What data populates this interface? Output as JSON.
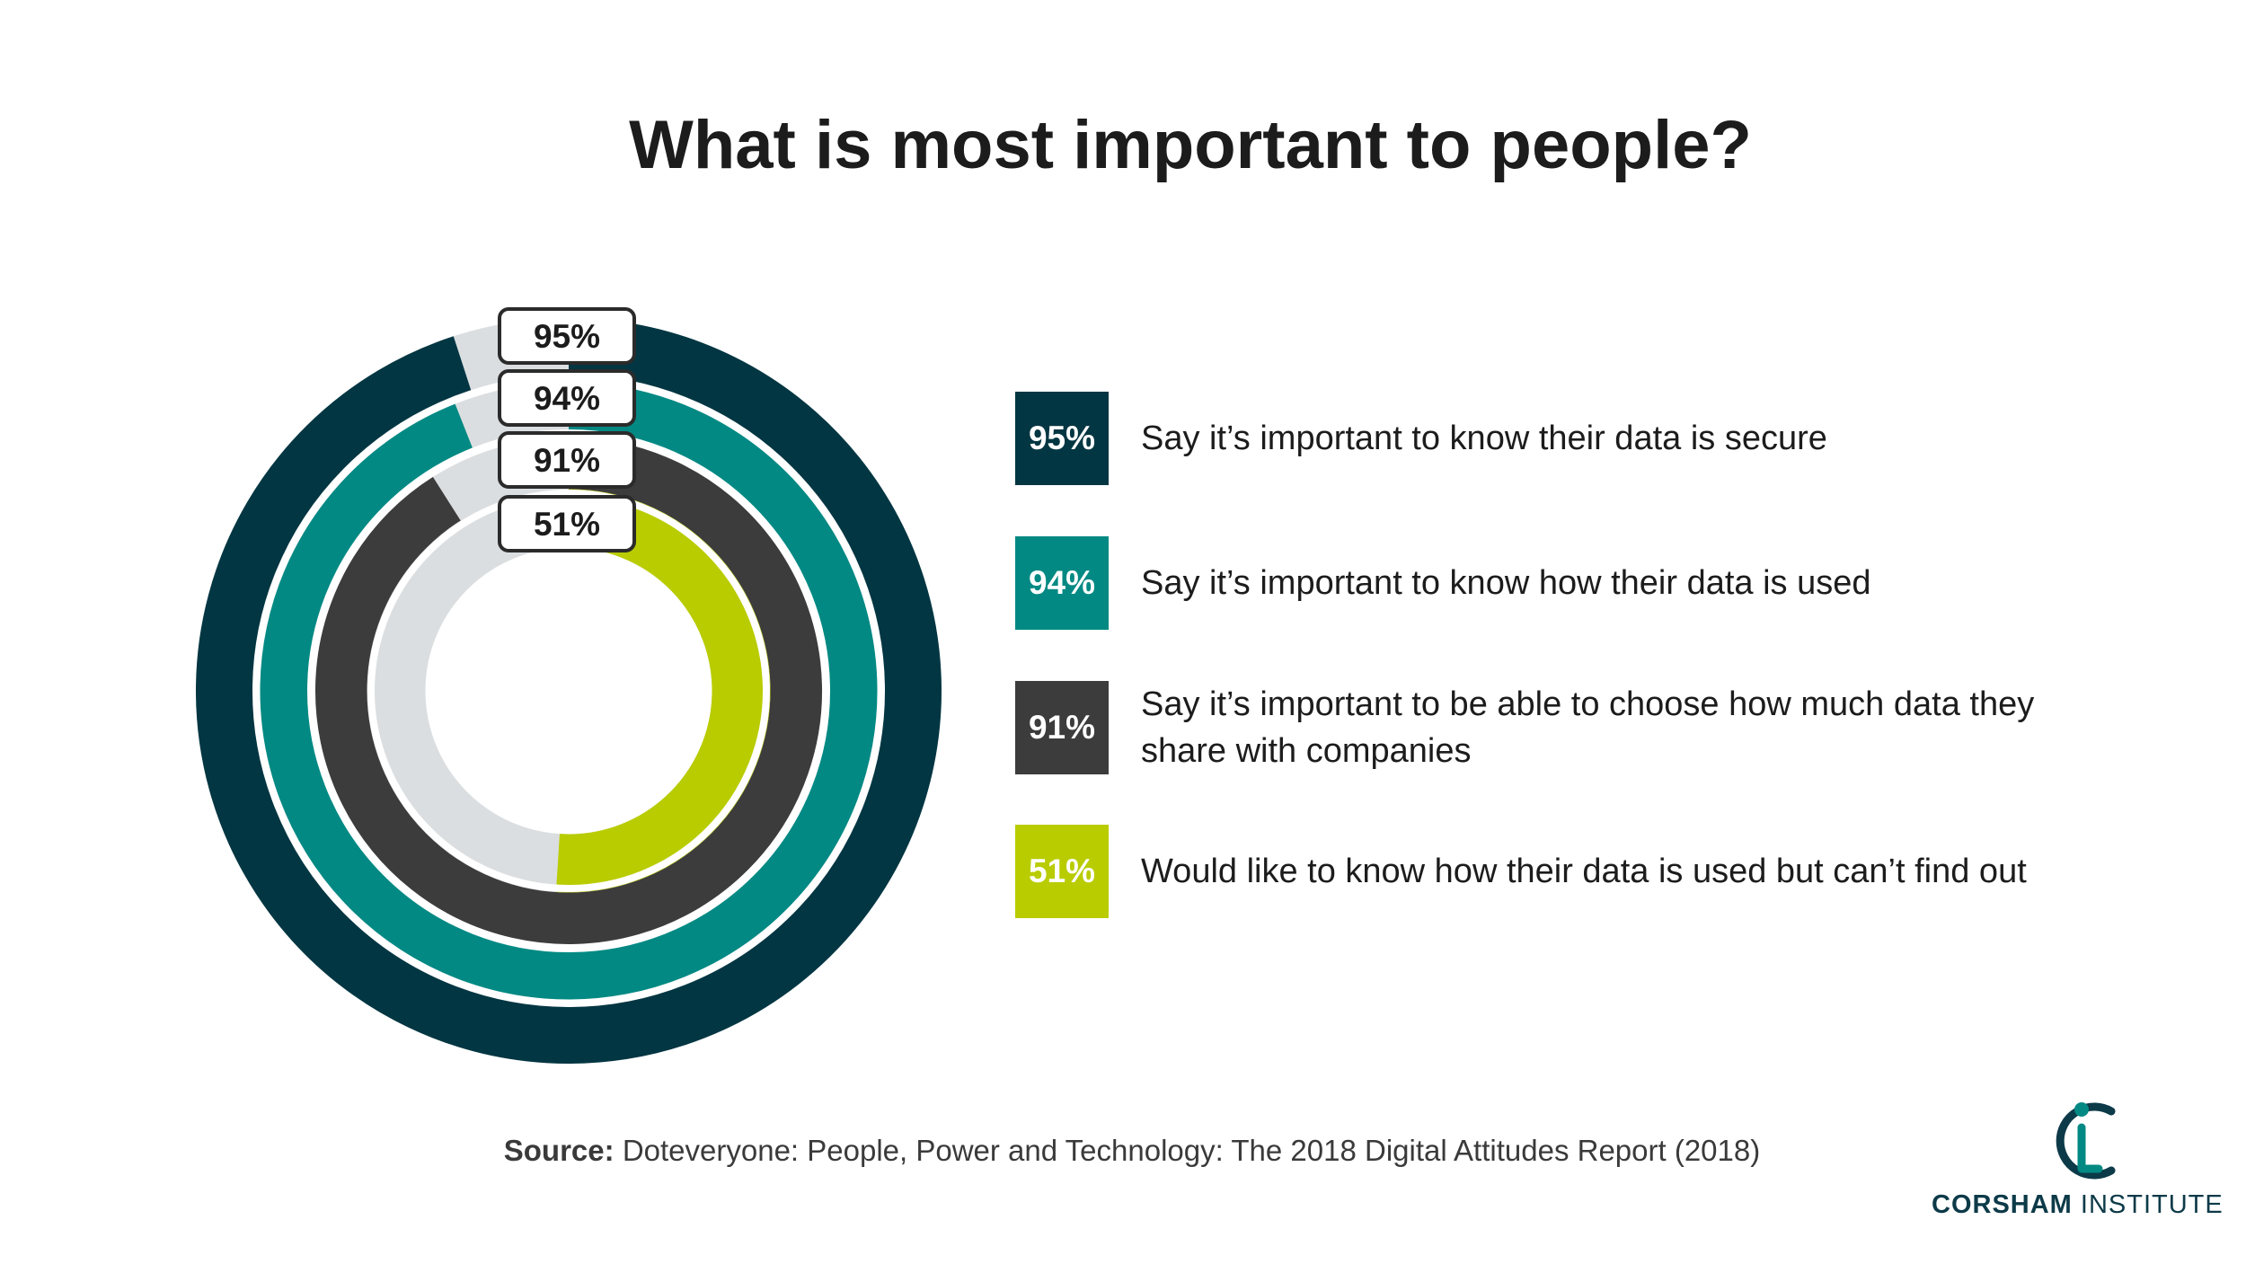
{
  "header": {
    "title": "What is most important to people?"
  },
  "colors": {
    "secure": "#023642",
    "used": "#028983",
    "choose": "#3c3c3c",
    "cant_find": "#b9cc00",
    "remainder": "#dbdee0",
    "logo": "#0d3a48"
  },
  "chart_data": {
    "type": "radial-bar",
    "title": "What is most important to people?",
    "unit": "%",
    "max": 100,
    "series": [
      {
        "label": "95%",
        "value": 95,
        "description": "Say it’s important to know their data is secure",
        "color": "#023642"
      },
      {
        "label": "94%",
        "value": 94,
        "description": "Say it’s important to know how their data is used",
        "color": "#028983"
      },
      {
        "label": "91%",
        "value": 91,
        "description": "Say it’s important to be able to choose how much data they share with companies",
        "color": "#3c3c3c"
      },
      {
        "label": "51%",
        "value": 51,
        "description": "Would like to know how their data is used but can’t find out",
        "color": "#b9cc00"
      }
    ]
  },
  "source": {
    "label": "Source:",
    "text": "Doteveryone: People, Power and Technology: The 2018 Digital Attitudes Report (2018)"
  },
  "logo": {
    "name_bold": "CORSHAM",
    "name_regular": "INSTITUTE"
  }
}
